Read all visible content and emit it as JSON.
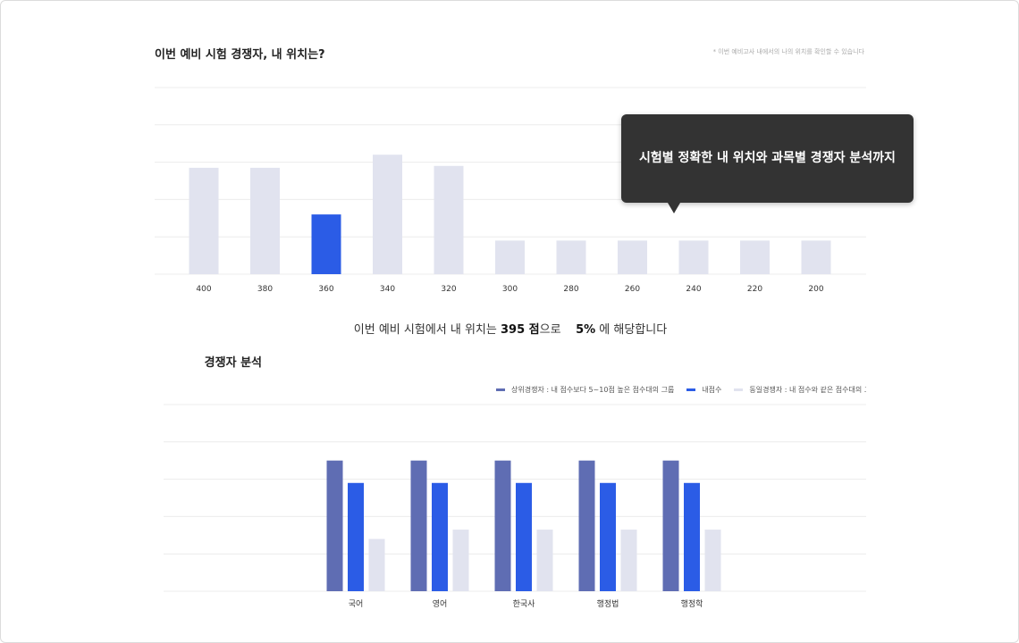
{
  "section1": {
    "title": "이번 예비 시험 경쟁자, 내 위치는?",
    "note": "* 이번 예비고사 내에서의 나의 위치를 확인할 수 있습니다"
  },
  "summary": {
    "prefix": "이번 예비 시험에서 내 위치는 ",
    "score": "395 점",
    "middle": "으로 ",
    "percent": "5%",
    "suffix": "에 해당합니다"
  },
  "tooltip": {
    "text": "시험별 정확한 내 위치와 과목별 경쟁자 분석까지"
  },
  "section2": {
    "title": "경쟁자 분석"
  },
  "colors": {
    "accent": "#2b5ce6",
    "muted_bar": "#e1e3ef",
    "upper_bar": "#5f6db3",
    "grid": "#ececec",
    "tooltip_bg": "#333333"
  },
  "chart_data": [
    {
      "type": "bar",
      "categories": [
        "400",
        "380",
        "360",
        "340",
        "320",
        "300",
        "280",
        "260",
        "240",
        "220",
        "200"
      ],
      "values": [
        28.5,
        28.5,
        16,
        32,
        29,
        9,
        9,
        9,
        9,
        9,
        9
      ],
      "highlight_index": 2,
      "ylim": [
        0,
        50
      ],
      "grid": true
    },
    {
      "type": "bar",
      "categories": [
        "국어",
        "영어",
        "한국사",
        "행정법",
        "행정학"
      ],
      "series": [
        {
          "name": "상위경쟁자 : 내 점수보다 5~10점 높은 점수대의 그룹",
          "values": [
            70,
            70,
            70,
            70,
            70
          ]
        },
        {
          "name": "내점수",
          "values": [
            58,
            58,
            58,
            58,
            58
          ]
        },
        {
          "name": "동일경쟁자 : 내 점수와 같은 점수대의 그룹",
          "values": [
            28,
            33,
            33,
            33,
            33
          ]
        }
      ],
      "ylim": [
        0,
        100
      ],
      "grid": true,
      "legend": "top-right"
    }
  ]
}
